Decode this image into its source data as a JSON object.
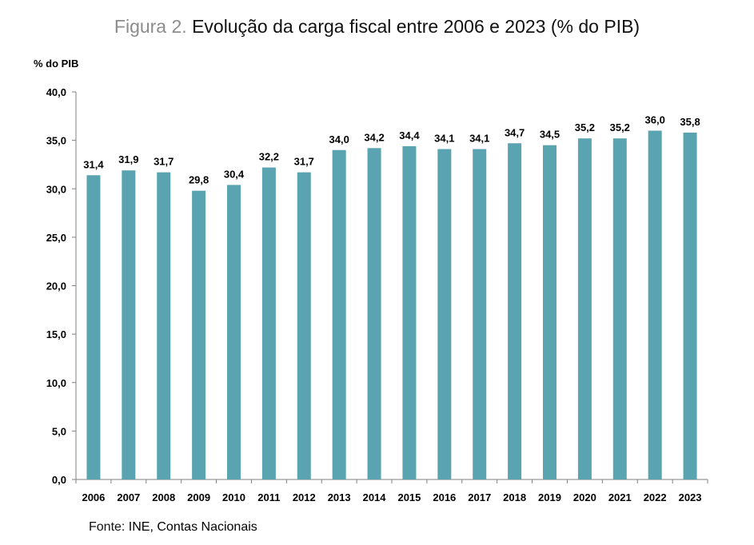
{
  "figure": {
    "prefix": "Figura 2.",
    "title": "Evolução da carga fiscal entre 2006 e 2023 (% do PIB)"
  },
  "source": {
    "label": "Fonte:",
    "text": " INE, Contas Nacionais"
  },
  "colors": {
    "bar": "#5aa3b0",
    "axis": "#808080",
    "text": "#000000"
  },
  "chart_data": {
    "type": "bar",
    "title": "Evolução da carga fiscal entre 2006 e 2023 (% do PIB)",
    "xlabel": "",
    "ylabel": "% do PIB",
    "ylim": [
      0,
      40
    ],
    "ytick_step": 5,
    "ytick_labels": [
      "0,0",
      "5,0",
      "10,0",
      "15,0",
      "20,0",
      "25,0",
      "30,0",
      "35,0",
      "40,0"
    ],
    "grid": false,
    "categories": [
      "2006",
      "2007",
      "2008",
      "2009",
      "2010",
      "2011",
      "2012",
      "2013",
      "2014",
      "2015",
      "2016",
      "2017",
      "2018",
      "2019",
      "2020",
      "2021",
      "2022",
      "2023"
    ],
    "values": [
      31.4,
      31.9,
      31.7,
      29.8,
      30.4,
      32.2,
      31.7,
      34.0,
      34.2,
      34.4,
      34.1,
      34.1,
      34.7,
      34.5,
      35.2,
      35.2,
      36.0,
      35.8
    ],
    "value_labels": [
      "31,4",
      "31,9",
      "31,7",
      "29,8",
      "30,4",
      "32,2",
      "31,7",
      "34,0",
      "34,2",
      "34,4",
      "34,1",
      "34,1",
      "34,7",
      "34,5",
      "35,2",
      "35,2",
      "36,0",
      "35,8"
    ]
  }
}
